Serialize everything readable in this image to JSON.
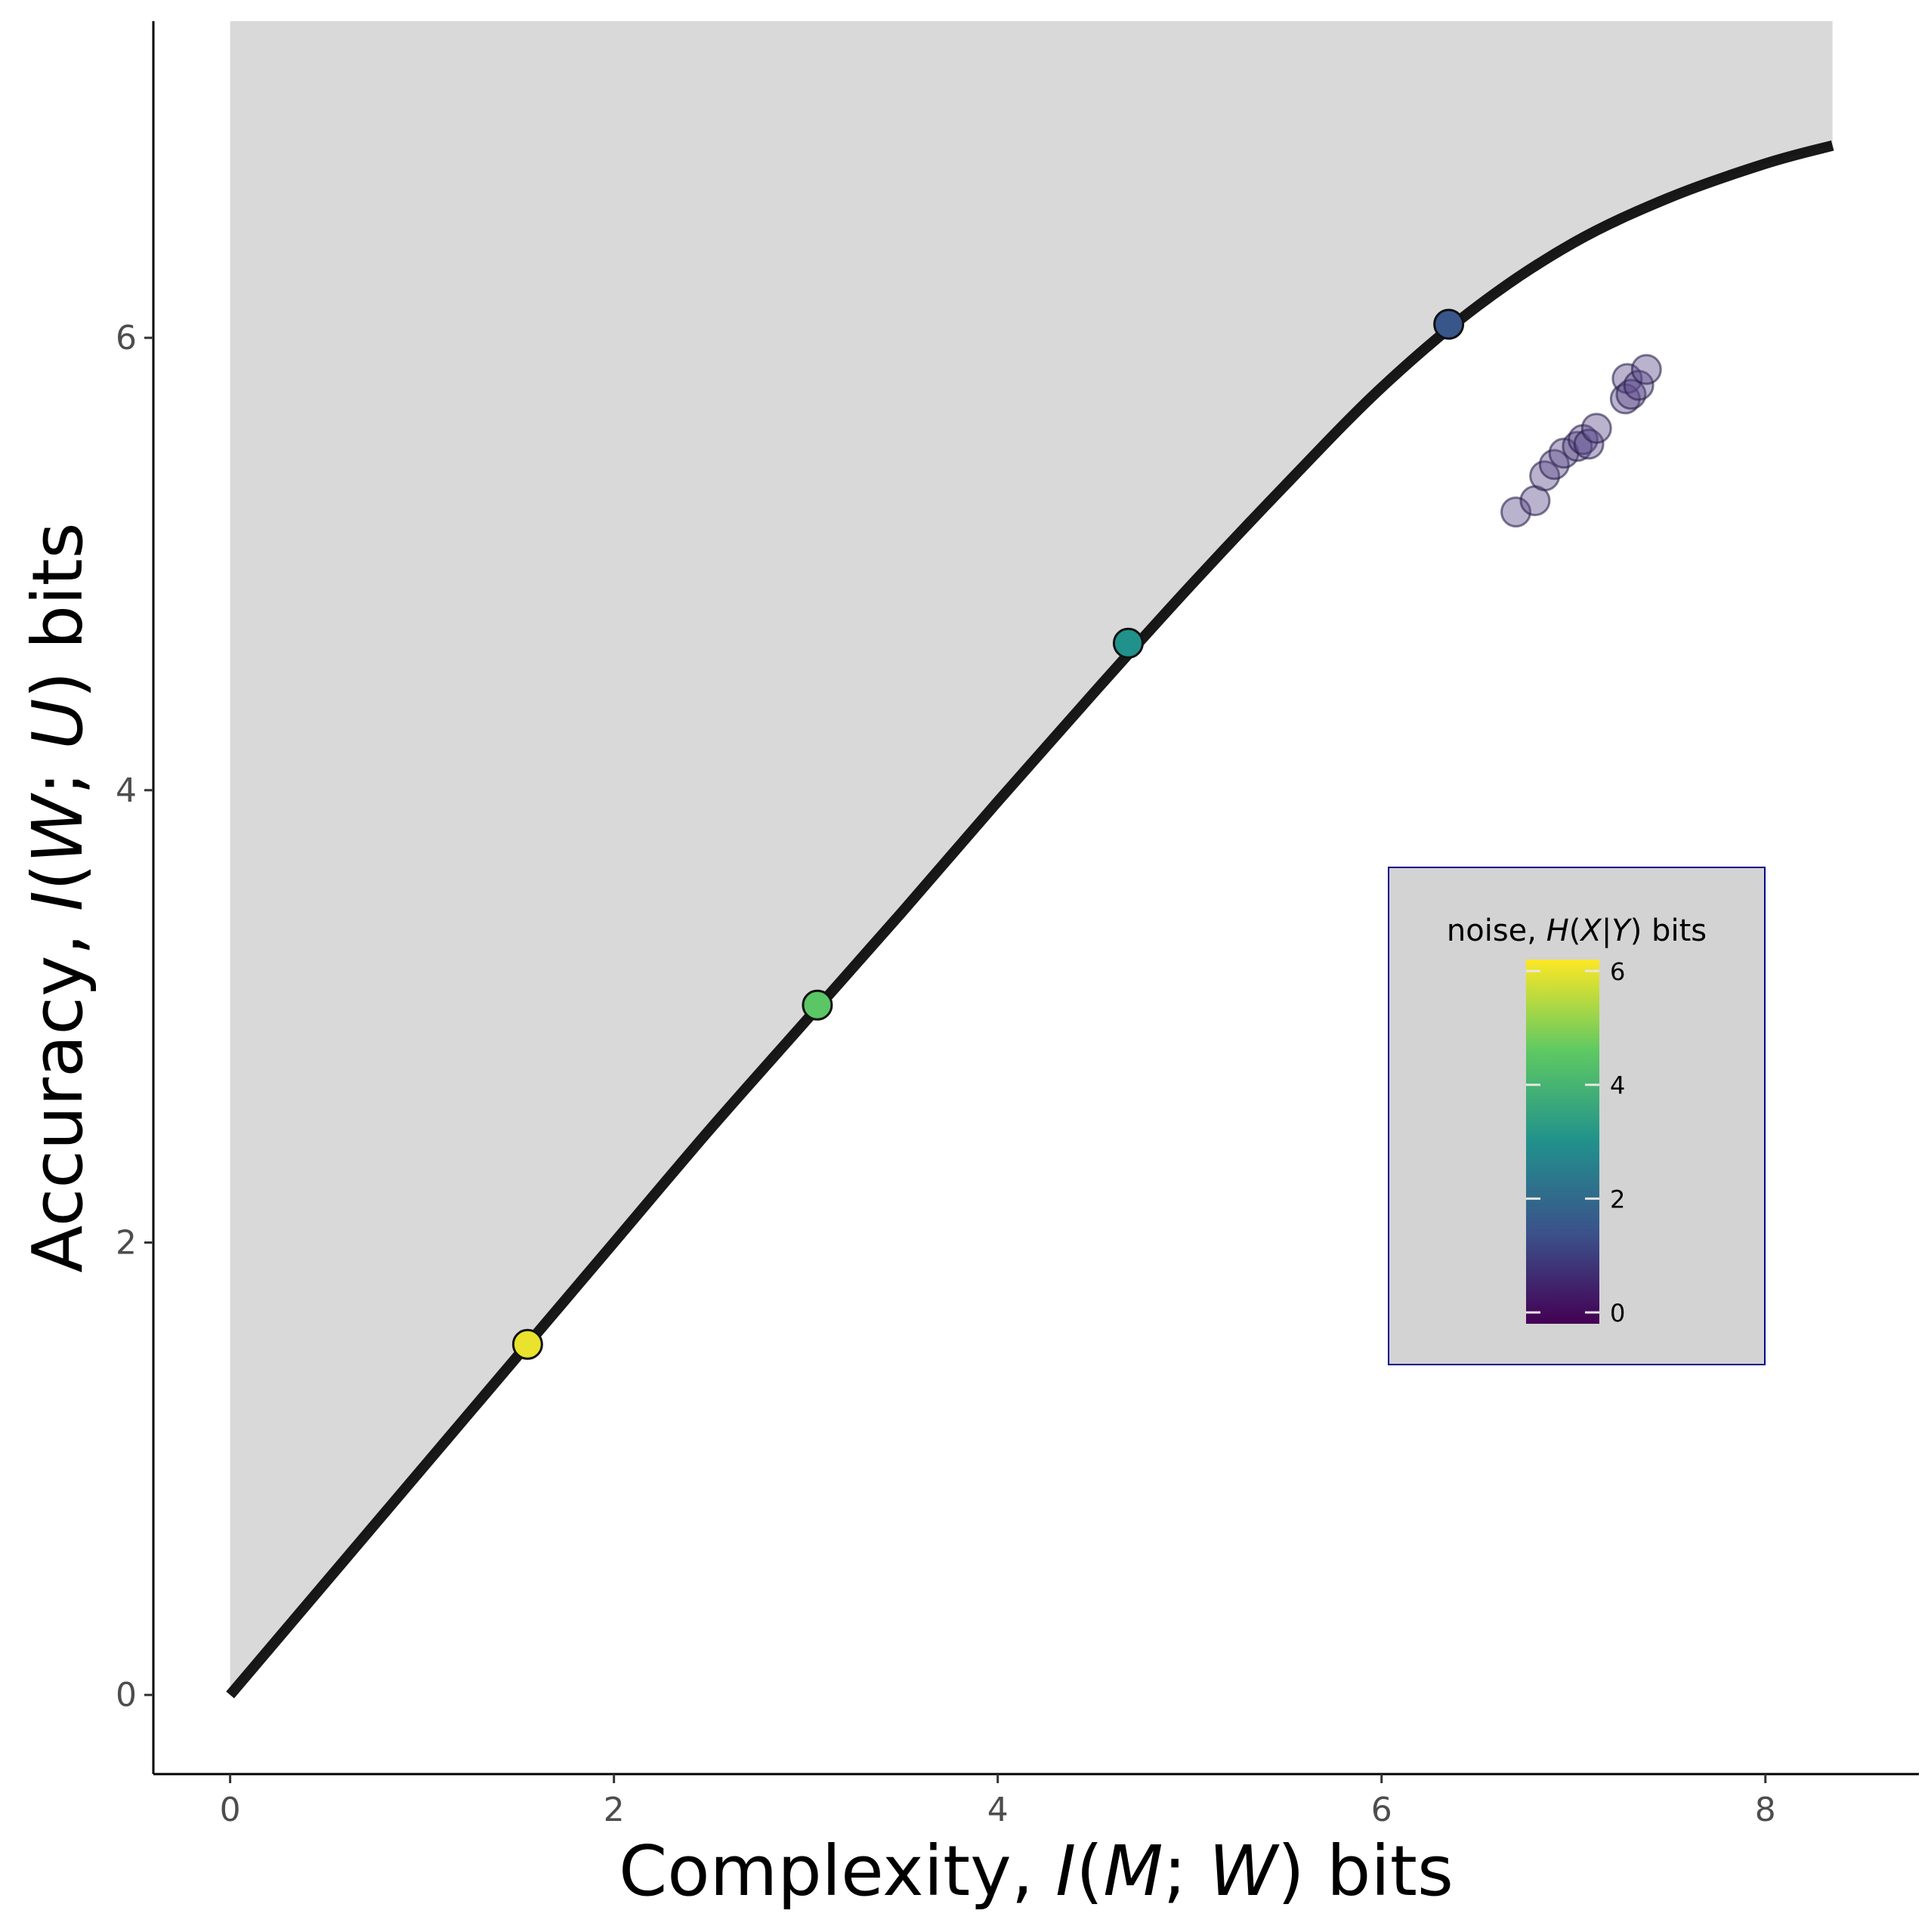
{
  "chart_data": {
    "type": "scatter",
    "xlabel": {
      "prefix": "Complexity, ",
      "math": "I(M; W)",
      "suffix": " bits"
    },
    "ylabel": {
      "prefix": "Accuracy, ",
      "math": "I(W; U)",
      "suffix": " bits"
    },
    "xlim": [
      -0.4,
      8.8
    ],
    "ylim": [
      -0.35,
      7.4
    ],
    "xticks": [
      0,
      2,
      4,
      6,
      8
    ],
    "yticks": [
      0,
      2,
      4,
      6
    ],
    "grid": false,
    "shaded_region": {
      "description_color": "#d9d9d9",
      "x_start": 0,
      "x_end": 8.35
    },
    "frontier_curve": [
      [
        0,
        0
      ],
      [
        0.5,
        0.5
      ],
      [
        1.0,
        1.0
      ],
      [
        1.5,
        1.5
      ],
      [
        2.0,
        2.0
      ],
      [
        2.5,
        2.5
      ],
      [
        3.0,
        2.98
      ],
      [
        3.5,
        3.46
      ],
      [
        4.0,
        3.95
      ],
      [
        4.5,
        4.43
      ],
      [
        5.0,
        4.9
      ],
      [
        5.5,
        5.35
      ],
      [
        6.0,
        5.78
      ],
      [
        6.5,
        6.14
      ],
      [
        7.0,
        6.42
      ],
      [
        7.5,
        6.62
      ],
      [
        8.0,
        6.77
      ],
      [
        8.35,
        6.85
      ]
    ],
    "frontier_points": [
      {
        "x": 1.55,
        "y": 1.55,
        "noise": 6.0
      },
      {
        "x": 3.06,
        "y": 3.05,
        "noise": 4.5
      },
      {
        "x": 4.68,
        "y": 4.65,
        "noise": 3.0
      },
      {
        "x": 6.35,
        "y": 6.06,
        "noise": 1.5
      }
    ],
    "observed_points": [
      {
        "x": 6.7,
        "y": 5.23
      },
      {
        "x": 6.8,
        "y": 5.28
      },
      {
        "x": 6.85,
        "y": 5.39
      },
      {
        "x": 6.9,
        "y": 5.44
      },
      {
        "x": 6.95,
        "y": 5.49
      },
      {
        "x": 7.02,
        "y": 5.52
      },
      {
        "x": 7.05,
        "y": 5.55
      },
      {
        "x": 7.08,
        "y": 5.53
      },
      {
        "x": 7.12,
        "y": 5.6
      },
      {
        "x": 7.27,
        "y": 5.73
      },
      {
        "x": 7.28,
        "y": 5.82
      },
      {
        "x": 7.3,
        "y": 5.75
      },
      {
        "x": 7.34,
        "y": 5.79
      },
      {
        "x": 7.38,
        "y": 5.86
      }
    ],
    "legend": {
      "title": {
        "prefix": "noise, ",
        "math": "H(X|Y)",
        "suffix": " bits"
      },
      "ticks": [
        0,
        2,
        4,
        6
      ],
      "range": [
        -0.2,
        6.2
      ],
      "colormap": [
        "#440154",
        "#3b528b",
        "#21918c",
        "#5ec962",
        "#fde725"
      ],
      "placement": "lower-right",
      "background": "#d3d3d3",
      "border": "#00008b"
    },
    "colors": {
      "curve": "#000000",
      "shade": "#d9d9d9",
      "observed_fill": "#5b4a8b"
    }
  }
}
